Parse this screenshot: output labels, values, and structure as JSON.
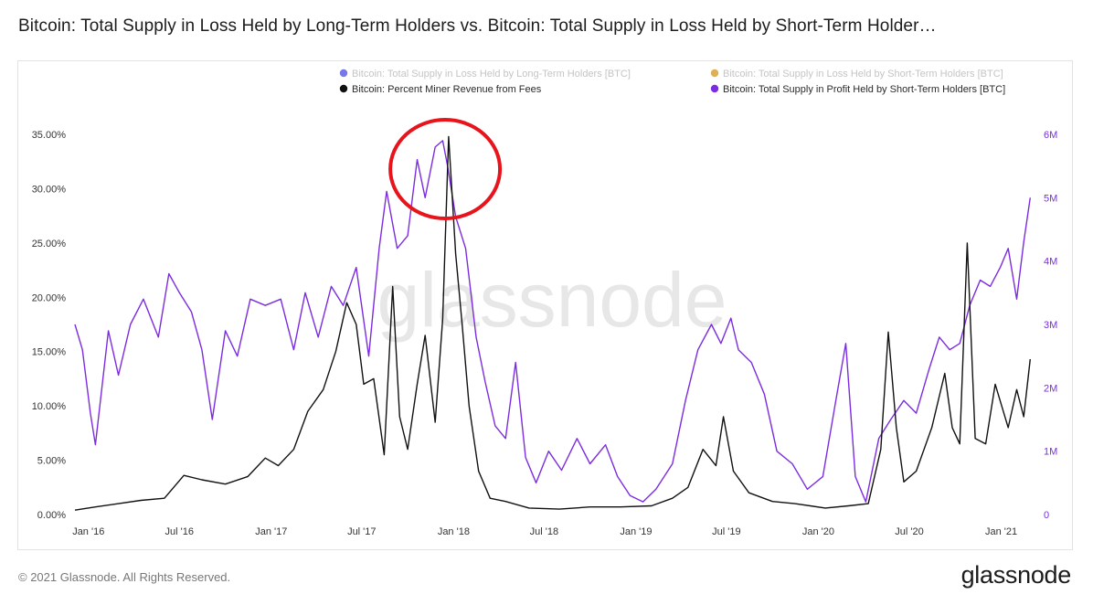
{
  "page": {
    "title": "Bitcoin: Total Supply in Loss Held by Long-Term Holders vs. Bitcoin: Total Supply in Loss Held by Short-Term Holder…",
    "copyright": "© 2021 Glassnode. All Rights Reserved.",
    "logo": "glassnode",
    "watermark": "glassnode"
  },
  "colors": {
    "purple": "#7b2ce0",
    "black": "#111111",
    "lth_loss_blue": "#4a4ae0",
    "sth_loss_orange": "#d6931c",
    "highlight_red": "#e8141c"
  },
  "chart_data": {
    "type": "line",
    "legend": [
      {
        "label": "Bitcoin: Total Supply in Loss Held by Long-Term Holders [BTC]",
        "color": "#4a4ae0",
        "active": false
      },
      {
        "label": "Bitcoin: Total Supply in Loss Held by Short-Term Holders [BTC]",
        "color": "#d6931c",
        "active": false
      },
      {
        "label": "Bitcoin: Percent Miner Revenue from Fees",
        "color": "#111111",
        "active": true
      },
      {
        "label": "Bitcoin: Total Supply in Profit Held by Short-Term Holders [BTC]",
        "color": "#7b2ce0",
        "active": true
      }
    ],
    "x_ticks": [
      "Jan '16",
      "Jul '16",
      "Jan '17",
      "Jul '17",
      "Jan '18",
      "Jul '18",
      "Jan '19",
      "Jul '19",
      "Jan '20",
      "Jul '20",
      "Jan '21"
    ],
    "x_range": [
      "2015-12-05",
      "2021-03-05"
    ],
    "y_left": {
      "ticks": [
        "0.00%",
        "5.00%",
        "10.00%",
        "15.00%",
        "20.00%",
        "25.00%",
        "30.00%",
        "35.00%"
      ],
      "range": [
        0,
        35
      ]
    },
    "y_right": {
      "ticks": [
        "0",
        "1M",
        "2M",
        "3M",
        "4M",
        "5M",
        "6M"
      ],
      "range": [
        0,
        6000000
      ]
    },
    "series": [
      {
        "name": "Bitcoin: Percent Miner Revenue from Fees",
        "axis": "left",
        "color": "#111111",
        "points": [
          [
            "2015-12-05",
            0.4
          ],
          [
            "2016-01-15",
            0.7
          ],
          [
            "2016-03-01",
            1.0
          ],
          [
            "2016-04-15",
            1.3
          ],
          [
            "2016-06-01",
            1.5
          ],
          [
            "2016-07-10",
            3.6
          ],
          [
            "2016-08-15",
            3.2
          ],
          [
            "2016-10-01",
            2.8
          ],
          [
            "2016-11-15",
            3.5
          ],
          [
            "2016-12-20",
            5.2
          ],
          [
            "2017-01-15",
            4.5
          ],
          [
            "2017-02-15",
            6.0
          ],
          [
            "2017-03-15",
            9.5
          ],
          [
            "2017-04-15",
            11.5
          ],
          [
            "2017-05-10",
            15.0
          ],
          [
            "2017-06-01",
            19.5
          ],
          [
            "2017-06-20",
            17.5
          ],
          [
            "2017-07-05",
            12.0
          ],
          [
            "2017-07-25",
            12.5
          ],
          [
            "2017-08-15",
            5.5
          ],
          [
            "2017-09-01",
            21.0
          ],
          [
            "2017-09-15",
            9.0
          ],
          [
            "2017-10-01",
            6.0
          ],
          [
            "2017-10-20",
            12.0
          ],
          [
            "2017-11-05",
            16.5
          ],
          [
            "2017-11-25",
            8.5
          ],
          [
            "2017-12-10",
            18.0
          ],
          [
            "2017-12-22",
            34.8
          ],
          [
            "2018-01-05",
            24.0
          ],
          [
            "2018-01-18",
            17.5
          ],
          [
            "2018-02-01",
            10.0
          ],
          [
            "2018-02-20",
            4.0
          ],
          [
            "2018-03-15",
            1.5
          ],
          [
            "2018-04-15",
            1.2
          ],
          [
            "2018-06-01",
            0.6
          ],
          [
            "2018-08-01",
            0.5
          ],
          [
            "2018-10-01",
            0.7
          ],
          [
            "2018-12-01",
            0.7
          ],
          [
            "2019-02-01",
            0.8
          ],
          [
            "2019-03-15",
            1.5
          ],
          [
            "2019-04-15",
            2.5
          ],
          [
            "2019-05-15",
            6.0
          ],
          [
            "2019-06-10",
            4.5
          ],
          [
            "2019-06-25",
            9.0
          ],
          [
            "2019-07-15",
            4.0
          ],
          [
            "2019-08-15",
            2.0
          ],
          [
            "2019-10-01",
            1.2
          ],
          [
            "2019-11-15",
            1.0
          ],
          [
            "2020-01-15",
            0.6
          ],
          [
            "2020-03-01",
            0.8
          ],
          [
            "2020-04-10",
            1.0
          ],
          [
            "2020-05-05",
            6.0
          ],
          [
            "2020-05-20",
            16.8
          ],
          [
            "2020-06-05",
            8.0
          ],
          [
            "2020-06-20",
            3.0
          ],
          [
            "2020-07-15",
            4.0
          ],
          [
            "2020-08-15",
            8.0
          ],
          [
            "2020-09-10",
            13.0
          ],
          [
            "2020-09-25",
            8.0
          ],
          [
            "2020-10-10",
            6.5
          ],
          [
            "2020-10-25",
            25.0
          ],
          [
            "2020-11-10",
            7.0
          ],
          [
            "2020-12-01",
            6.5
          ],
          [
            "2020-12-20",
            12.0
          ],
          [
            "2021-01-15",
            8.0
          ],
          [
            "2021-02-01",
            11.5
          ],
          [
            "2021-02-15",
            9.0
          ],
          [
            "2021-02-28",
            14.3
          ]
        ]
      },
      {
        "name": "Bitcoin: Total Supply in Profit Held by Short-Term Holders [BTC]",
        "axis": "right",
        "color": "#7b2ce0",
        "points": [
          [
            "2015-12-05",
            3000000
          ],
          [
            "2015-12-20",
            2600000
          ],
          [
            "2016-01-05",
            1600000
          ],
          [
            "2016-01-15",
            1100000
          ],
          [
            "2016-02-10",
            2900000
          ],
          [
            "2016-03-01",
            2200000
          ],
          [
            "2016-03-25",
            3000000
          ],
          [
            "2016-04-20",
            3400000
          ],
          [
            "2016-05-20",
            2800000
          ],
          [
            "2016-06-10",
            3800000
          ],
          [
            "2016-07-01",
            3500000
          ],
          [
            "2016-07-25",
            3200000
          ],
          [
            "2016-08-15",
            2600000
          ],
          [
            "2016-09-05",
            1500000
          ],
          [
            "2016-10-01",
            2900000
          ],
          [
            "2016-10-25",
            2500000
          ],
          [
            "2016-11-20",
            3400000
          ],
          [
            "2016-12-20",
            3300000
          ],
          [
            "2017-01-20",
            3400000
          ],
          [
            "2017-02-15",
            2600000
          ],
          [
            "2017-03-10",
            3500000
          ],
          [
            "2017-04-05",
            2800000
          ],
          [
            "2017-05-01",
            3600000
          ],
          [
            "2017-05-25",
            3300000
          ],
          [
            "2017-06-20",
            3900000
          ],
          [
            "2017-07-15",
            2500000
          ],
          [
            "2017-08-05",
            4200000
          ],
          [
            "2017-08-20",
            5100000
          ],
          [
            "2017-09-10",
            4200000
          ],
          [
            "2017-10-01",
            4400000
          ],
          [
            "2017-10-20",
            5600000
          ],
          [
            "2017-11-05",
            5000000
          ],
          [
            "2017-11-25",
            5800000
          ],
          [
            "2017-12-10",
            5900000
          ],
          [
            "2017-12-20",
            5500000
          ],
          [
            "2018-01-05",
            4700000
          ],
          [
            "2018-01-25",
            4200000
          ],
          [
            "2018-02-15",
            2800000
          ],
          [
            "2018-03-05",
            2100000
          ],
          [
            "2018-03-25",
            1400000
          ],
          [
            "2018-04-15",
            1200000
          ],
          [
            "2018-05-05",
            2400000
          ],
          [
            "2018-05-25",
            900000
          ],
          [
            "2018-06-15",
            500000
          ],
          [
            "2018-07-10",
            1000000
          ],
          [
            "2018-08-05",
            700000
          ],
          [
            "2018-09-05",
            1200000
          ],
          [
            "2018-10-01",
            800000
          ],
          [
            "2018-11-01",
            1100000
          ],
          [
            "2018-11-25",
            600000
          ],
          [
            "2018-12-20",
            300000
          ],
          [
            "2019-01-15",
            200000
          ],
          [
            "2019-02-10",
            400000
          ],
          [
            "2019-03-15",
            800000
          ],
          [
            "2019-04-10",
            1800000
          ],
          [
            "2019-05-05",
            2600000
          ],
          [
            "2019-06-01",
            3000000
          ],
          [
            "2019-06-20",
            2700000
          ],
          [
            "2019-07-10",
            3100000
          ],
          [
            "2019-07-25",
            2600000
          ],
          [
            "2019-08-20",
            2400000
          ],
          [
            "2019-09-15",
            1900000
          ],
          [
            "2019-10-10",
            1000000
          ],
          [
            "2019-11-10",
            800000
          ],
          [
            "2019-12-10",
            400000
          ],
          [
            "2020-01-10",
            600000
          ],
          [
            "2020-02-05",
            1800000
          ],
          [
            "2020-02-25",
            2700000
          ],
          [
            "2020-03-15",
            600000
          ],
          [
            "2020-04-05",
            200000
          ],
          [
            "2020-05-01",
            1200000
          ],
          [
            "2020-05-25",
            1500000
          ],
          [
            "2020-06-20",
            1800000
          ],
          [
            "2020-07-15",
            1600000
          ],
          [
            "2020-08-10",
            2300000
          ],
          [
            "2020-08-30",
            2800000
          ],
          [
            "2020-09-20",
            2600000
          ],
          [
            "2020-10-10",
            2700000
          ],
          [
            "2020-10-30",
            3300000
          ],
          [
            "2020-11-20",
            3700000
          ],
          [
            "2020-12-10",
            3600000
          ],
          [
            "2020-12-30",
            3900000
          ],
          [
            "2021-01-15",
            4200000
          ],
          [
            "2021-02-01",
            3400000
          ],
          [
            "2021-02-15",
            4300000
          ],
          [
            "2021-02-28",
            5000000
          ]
        ]
      }
    ],
    "annotation": {
      "type": "ellipse",
      "color": "#e8141c",
      "center_date": "2017-12-15",
      "center_value_left": 31.8
    }
  }
}
